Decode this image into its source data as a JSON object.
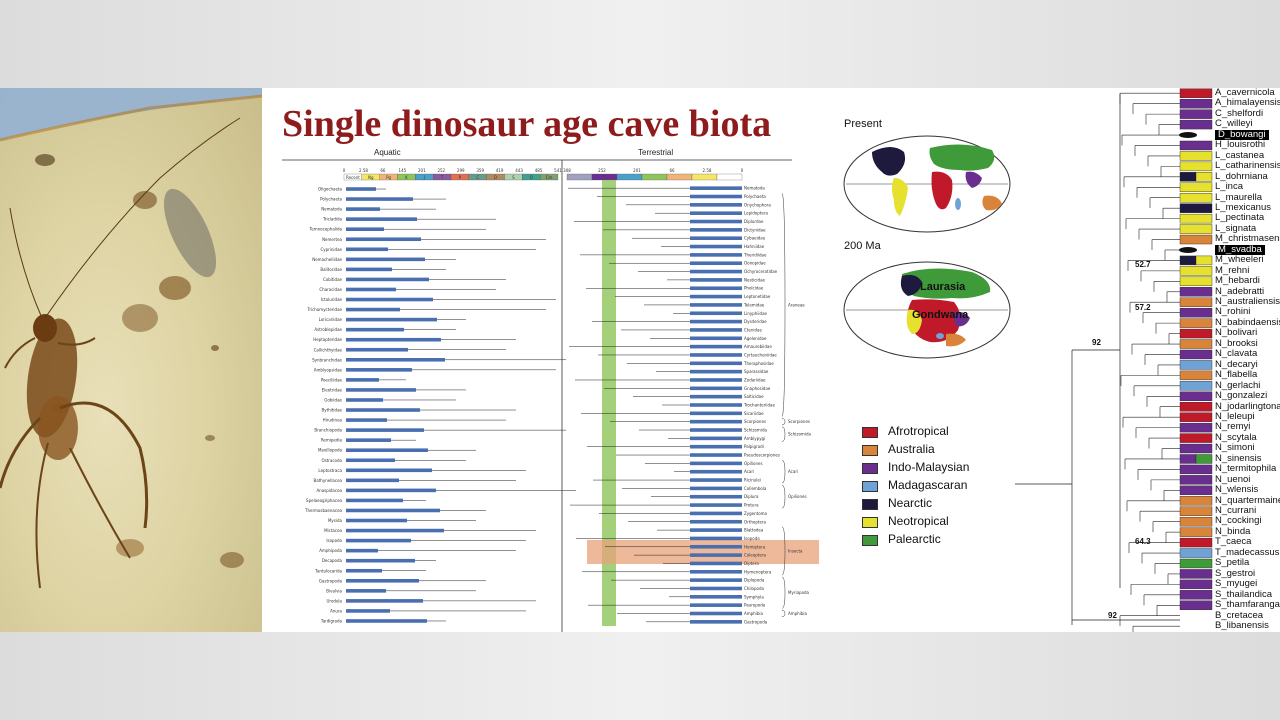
{
  "title": "Single dinosaur age cave biota",
  "chart_headers": {
    "aquatic": "Aquatic",
    "terrestrial": "Terrestrial"
  },
  "timescale": {
    "left_ticks": [
      "0",
      "2.58",
      "66",
      "145",
      "201",
      "252",
      "299",
      "359",
      "419",
      "443",
      "485",
      "541"
    ],
    "right_ticks": [
      "308",
      "252",
      "201",
      "66",
      "2.58",
      "0"
    ],
    "period_labels": [
      "Recent",
      "Ng",
      "Pg",
      "K",
      "J",
      "T",
      "P",
      "C",
      "D",
      "S",
      "O",
      "Cm"
    ]
  },
  "maps": {
    "present_label": "Present",
    "past_label": "200 Ma",
    "laurasia": "Laurasia",
    "gondwana": "Gondwana"
  },
  "colors": {
    "afrotropical": "#c0192a",
    "australia": "#d8843a",
    "indo_malaysian": "#6a2f8e",
    "madagascaran": "#6fa3d6",
    "nearctic": "#1d1a3e",
    "neotropical": "#e6e02e",
    "palearctic": "#3f9a3a",
    "title": "#8f1c1c",
    "bar_blue": "#4a6fb0",
    "green_band": "#8fc45a",
    "salmon": "#e8a27a"
  },
  "legend": [
    {
      "label": "Afrotropical",
      "color": "#c0192a"
    },
    {
      "label": "Australia",
      "color": "#d8843a"
    },
    {
      "label": "Indo-Malaysian",
      "color": "#6a2f8e"
    },
    {
      "label": "Madagascaran",
      "color": "#6fa3d6"
    },
    {
      "label": "Nearctic",
      "color": "#1d1a3e"
    },
    {
      "label": "Neotropical",
      "color": "#e6e02e"
    },
    {
      "label": "Palearctic",
      "color": "#3f9a3a"
    }
  ],
  "species": [
    {
      "name": "A_cavernicola",
      "colors": [
        "#c0192a"
      ]
    },
    {
      "name": "A_himalayensis",
      "colors": [
        "#6a2f8e"
      ]
    },
    {
      "name": "C_shelfordi",
      "colors": [
        "#6a2f8e"
      ]
    },
    {
      "name": "C_willeyi",
      "colors": [
        "#6a2f8e"
      ]
    },
    {
      "name": "D_bowangi",
      "colors": [],
      "highlight": true
    },
    {
      "name": "H_louisrothi",
      "colors": [
        "#6a2f8e"
      ]
    },
    {
      "name": "L_castanea",
      "colors": [
        "#e6e02e"
      ]
    },
    {
      "name": "L_catharinensis",
      "colors": [
        "#e6e02e"
      ]
    },
    {
      "name": "L_dohrniana",
      "colors": [
        "#1d1a3e",
        "#e6e02e"
      ]
    },
    {
      "name": "L_inca",
      "colors": [
        "#e6e02e"
      ]
    },
    {
      "name": "L_maurella",
      "colors": [
        "#e6e02e"
      ]
    },
    {
      "name": "L_mexicanus",
      "colors": [
        "#1d1a3e"
      ]
    },
    {
      "name": "L_pectinata",
      "colors": [
        "#e6e02e"
      ]
    },
    {
      "name": "L_signata",
      "colors": [
        "#e6e02e"
      ]
    },
    {
      "name": "M_christmasensis",
      "colors": [
        "#d8843a"
      ]
    },
    {
      "name": "M_svadba",
      "colors": [],
      "highlight": true
    },
    {
      "name": "M_wheeleri",
      "colors": [
        "#1d1a3e",
        "#e6e02e"
      ]
    },
    {
      "name": "M_rehni",
      "colors": [
        "#e6e02e"
      ]
    },
    {
      "name": "M_hebardi",
      "colors": [
        "#e6e02e"
      ]
    },
    {
      "name": "N_adebratti",
      "colors": [
        "#6a2f8e"
      ]
    },
    {
      "name": "N_australiensis",
      "colors": [
        "#d8843a"
      ]
    },
    {
      "name": "N_rohini",
      "colors": [
        "#6a2f8e"
      ]
    },
    {
      "name": "N_babindaensis",
      "colors": [
        "#d8843a"
      ]
    },
    {
      "name": "N_bolivari",
      "colors": [
        "#c0192a"
      ]
    },
    {
      "name": "N_brooksi",
      "colors": [
        "#d8843a"
      ]
    },
    {
      "name": "N_clavata",
      "colors": [
        "#6a2f8e"
      ]
    },
    {
      "name": "N_decaryi",
      "colors": [
        "#6fa3d6"
      ]
    },
    {
      "name": "N_flabella",
      "colors": [
        "#d8843a"
      ]
    },
    {
      "name": "N_gerlachi",
      "colors": [
        "#6fa3d6"
      ]
    },
    {
      "name": "N_gonzalezi",
      "colors": [
        "#6a2f8e"
      ]
    },
    {
      "name": "N_jodarlingtonae",
      "colors": [
        "#c0192a"
      ]
    },
    {
      "name": "N_leleupi",
      "colors": [
        "#c0192a"
      ]
    },
    {
      "name": "N_remyi",
      "colors": [
        "#6a2f8e"
      ]
    },
    {
      "name": "N_scytala",
      "colors": [
        "#c0192a"
      ]
    },
    {
      "name": "N_simoni",
      "colors": [
        "#6a2f8e"
      ]
    },
    {
      "name": "N_sinensis",
      "colors": [
        "#6a2f8e",
        "#3f9a3a"
      ]
    },
    {
      "name": "N_termitophila",
      "colors": [
        "#6a2f8e"
      ]
    },
    {
      "name": "N_uenoi",
      "colors": [
        "#6a2f8e"
      ]
    },
    {
      "name": "N_wlensis",
      "colors": [
        "#6a2f8e"
      ]
    },
    {
      "name": "N_quartermainei",
      "colors": [
        "#d8843a"
      ]
    },
    {
      "name": "N_currani",
      "colors": [
        "#d8843a"
      ]
    },
    {
      "name": "N_cockingi",
      "colors": [
        "#d8843a"
      ]
    },
    {
      "name": "N_binda",
      "colors": [
        "#d8843a"
      ]
    },
    {
      "name": "T_caeca",
      "colors": [
        "#c0192a"
      ]
    },
    {
      "name": "T_madecassus",
      "colors": [
        "#6fa3d6"
      ]
    },
    {
      "name": "S_petila",
      "colors": [
        "#3f9a3a"
      ]
    },
    {
      "name": "S_gestroi",
      "colors": [
        "#6a2f8e"
      ]
    },
    {
      "name": "S_myugei",
      "colors": [
        "#6a2f8e"
      ]
    },
    {
      "name": "S_thailandica",
      "colors": [
        "#6a2f8e"
      ]
    },
    {
      "name": "S_thamfaranga",
      "colors": [
        "#6a2f8e"
      ]
    },
    {
      "name": "B_cretacea",
      "colors": []
    },
    {
      "name": "B_libanensis",
      "colors": []
    }
  ],
  "node_values": [
    "52.7",
    "57.2",
    "92",
    "64.3",
    "92"
  ],
  "taxa_left": [
    "Oligochaeta",
    "Polychaeta",
    "Nematoda",
    "Tricladida",
    "Temnocephalida",
    "Nemertea",
    "Cyprinidae",
    "Nemacheilidae",
    "Balitoridae",
    "Cobitidae",
    "Characidae",
    "Ictaluridae",
    "Trichomycteridae",
    "Loricariidae",
    "Astroblepidae",
    "Heptapteridae",
    "Callichthyidae",
    "Synbranchidae",
    "Amblyopsidae",
    "Poeciliidae",
    "Eleotridae",
    "Gobiidae",
    "Bythitidae",
    "Hirudinea",
    "Branchiopoda",
    "Remipedia",
    "Maxillopoda",
    "Ostracoda",
    "Leptostraca",
    "Bathynellacea",
    "Anaspidacea",
    "Spelaeogriphacea",
    "Thermosbaenacea",
    "Mysida",
    "Mictacea",
    "Isopoda",
    "Amphipoda",
    "Decapoda",
    "Tantulocarida",
    "Gastropoda",
    "Bivalvia",
    "Urodela",
    "Anura",
    "Tardigrada"
  ],
  "taxa_right": [
    "Nematoda",
    "Polychaeta",
    "Onychophora",
    "Lepidoptera",
    "Diplurdae",
    "Dictynidae",
    "Cybaeidae",
    "Hahniidae",
    "Theridiidae",
    "Oonopidae",
    "Ochyroceratidae",
    "Nesticidae",
    "Pholcidae",
    "Leptonetidae",
    "Telemidae",
    "Linyphiidae",
    "Dysderidae",
    "Ctenidae",
    "Agelenidae",
    "Amaurobiidae",
    "Cyrtaucheniidae",
    "Theraphosidae",
    "Sparassidae",
    "Zodariidae",
    "Gnaphosidae",
    "Salticidae",
    "Trochanteriidae",
    "Sicariidae",
    "Scorpiones",
    "Schizomida",
    "Amblypygi",
    "Palpigradi",
    "Pseudoscorpiones",
    "Opiliones",
    "Acari",
    "Ricinulei",
    "Collembola",
    "Diplura",
    "Protura",
    "Zygentoma",
    "Orthoptera",
    "Blattodea",
    "Isopoda",
    "Hemiptera",
    "Coleoptera",
    "Diptera",
    "Hymenoptera",
    "Diplopoda",
    "Chilopoda",
    "Symphyla",
    "Pauropoda",
    "Amphibia",
    "Gastropoda"
  ],
  "right_groups": [
    "Araneae",
    "Scorpiones",
    "Schizomida",
    "Acari",
    "Opiliones",
    "Myriapoda",
    "Insecta",
    "Amphibia"
  ]
}
